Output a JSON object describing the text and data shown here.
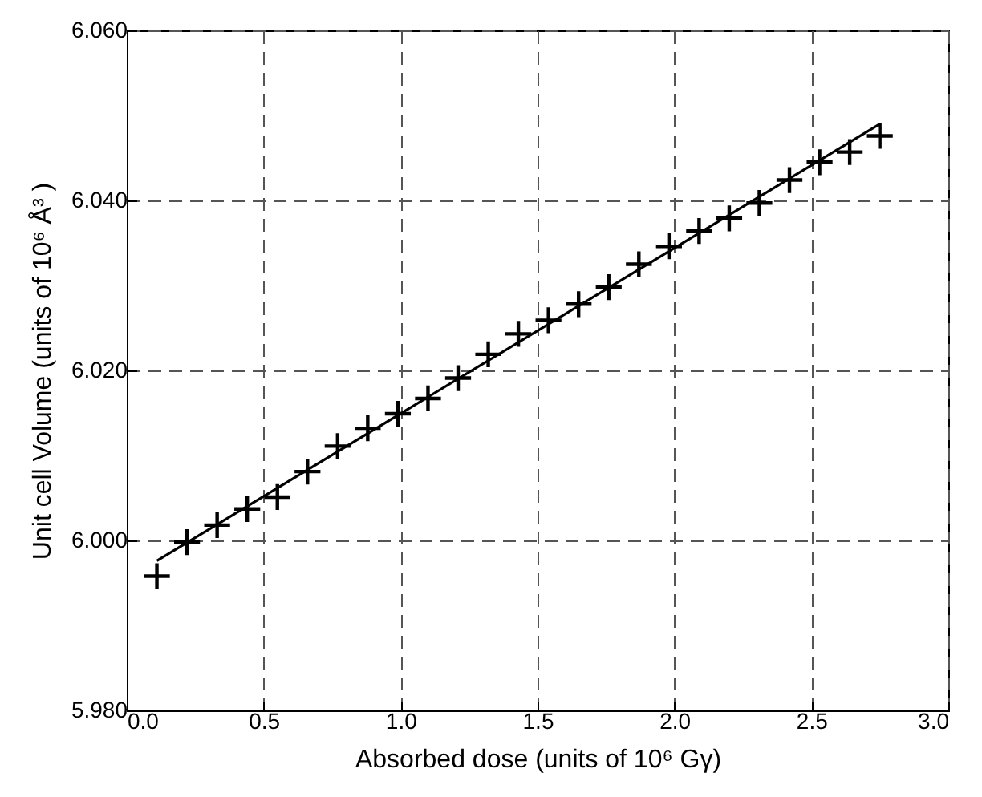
{
  "chart_data": {
    "type": "scatter",
    "xlabel": "Absorbed dose (units of 10⁶ Gγ)",
    "ylabel": "Unit cell Volume (units of 10⁶ Å³ )",
    "xlim": [
      0,
      3
    ],
    "ylim": [
      5.98,
      6.06
    ],
    "xticks": [
      {
        "value": 0,
        "label": "0.0"
      },
      0.5,
      {
        "value": 1,
        "label": "1.0"
      },
      1.5,
      {
        "value": 2,
        "label": "2.0"
      },
      2.5,
      {
        "value": 3,
        "label": "3.0"
      }
    ],
    "yticks": [
      {
        "value": 5.98,
        "label": "5.980"
      },
      {
        "value": 6.0,
        "label": "6.000"
      },
      {
        "value": 6.02,
        "label": "6.020"
      },
      {
        "value": 6.04,
        "label": "6.040"
      },
      {
        "value": 6.06,
        "label": "6.060"
      }
    ],
    "grid": true,
    "series": [
      {
        "marker": "cross",
        "color": "#000000",
        "x": [
          0.11,
          0.22,
          0.33,
          0.44,
          0.55,
          0.66,
          0.77,
          0.88,
          0.99,
          1.1,
          1.21,
          1.32,
          1.43,
          1.54,
          1.65,
          1.76,
          1.87,
          1.98,
          2.09,
          2.2,
          2.31,
          2.42,
          2.53,
          2.64,
          2.75
        ],
        "values": [
          5.9958,
          5.9998,
          6.0018,
          6.0037,
          6.0051,
          6.0081,
          6.0111,
          6.0132,
          6.0149,
          6.0167,
          6.0191,
          6.0219,
          6.0243,
          6.0259,
          6.0278,
          6.0298,
          6.0325,
          6.0346,
          6.0364,
          6.0379,
          6.0397,
          6.0424,
          6.0445,
          6.0457,
          6.0476
        ]
      },
      {
        "type": "line",
        "color": "#000000",
        "x": [
          0.11,
          2.75
        ],
        "values": [
          5.9976,
          6.049
        ]
      }
    ]
  }
}
